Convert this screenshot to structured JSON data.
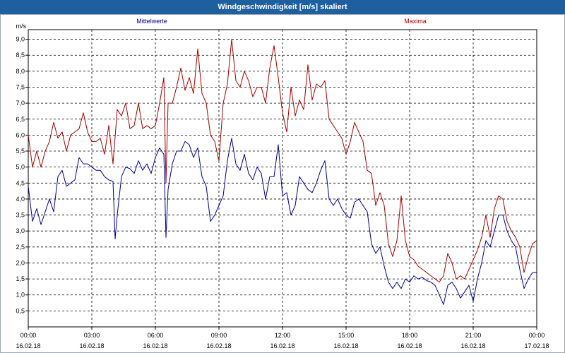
{
  "window": {
    "title": "Windgeschwindigkeit [m/s] skaliert"
  },
  "chart_data": {
    "type": "line",
    "unit": "m/s",
    "ylim": [
      0,
      9.3
    ],
    "yticks": [
      0.5,
      1.0,
      1.5,
      2.0,
      2.5,
      3.0,
      3.5,
      4.0,
      4.5,
      5.0,
      5.5,
      6.0,
      6.5,
      7.0,
      7.5,
      8.0,
      8.5,
      9.0
    ],
    "ytick_labels": [
      "0,5",
      "1,0",
      "1,5",
      "2,0",
      "2,5",
      "3,0",
      "3,5",
      "4,0",
      "4,5",
      "5,0",
      "5,5",
      "6,0",
      "6,5",
      "7,0",
      "7,5",
      "8,0",
      "8,5",
      "9,0"
    ],
    "xlim": [
      0,
      24
    ],
    "xticks": [
      0,
      3,
      6,
      9,
      12,
      15,
      18,
      21,
      24
    ],
    "xtick_time_labels": [
      "00:00",
      "03:00",
      "06:00",
      "09:00",
      "12:00",
      "15:00",
      "18:00",
      "21:00",
      "00:00"
    ],
    "xtick_date_labels": [
      "16.02.18",
      "16.02.18",
      "16.02.18",
      "16.02.18",
      "16.02.18",
      "16.02.18",
      "16.02.18",
      "16.02.18",
      "17.02.18"
    ],
    "grid": true,
    "series": [
      {
        "name": "Mittelwerte",
        "color": "#00008b",
        "legend_position": "top-left",
        "points": [
          [
            0.0,
            4.4
          ],
          [
            0.2,
            3.3
          ],
          [
            0.4,
            3.7
          ],
          [
            0.6,
            3.2
          ],
          [
            0.8,
            3.6
          ],
          [
            1.0,
            4.0
          ],
          [
            1.2,
            3.6
          ],
          [
            1.4,
            4.7
          ],
          [
            1.6,
            4.9
          ],
          [
            1.8,
            4.4
          ],
          [
            2.0,
            4.5
          ],
          [
            2.2,
            4.6
          ],
          [
            2.4,
            5.3
          ],
          [
            2.6,
            5.1
          ],
          [
            2.8,
            5.1
          ],
          [
            3.0,
            5.0
          ],
          [
            3.2,
            4.9
          ],
          [
            3.4,
            4.9
          ],
          [
            3.6,
            4.7
          ],
          [
            3.8,
            4.6
          ],
          [
            4.0,
            4.55
          ],
          [
            4.1,
            2.75
          ],
          [
            4.2,
            3.5
          ],
          [
            4.4,
            4.7
          ],
          [
            4.6,
            5.0
          ],
          [
            4.8,
            4.95
          ],
          [
            5.0,
            4.8
          ],
          [
            5.2,
            5.2
          ],
          [
            5.4,
            4.9
          ],
          [
            5.6,
            5.1
          ],
          [
            5.8,
            4.8
          ],
          [
            6.0,
            5.3
          ],
          [
            6.2,
            5.6
          ],
          [
            6.4,
            5.4
          ],
          [
            6.5,
            2.8
          ],
          [
            6.6,
            4.3
          ],
          [
            6.8,
            5.1
          ],
          [
            7.0,
            5.5
          ],
          [
            7.2,
            5.5
          ],
          [
            7.4,
            5.8
          ],
          [
            7.6,
            5.7
          ],
          [
            7.8,
            5.3
          ],
          [
            8.0,
            5.6
          ],
          [
            8.2,
            4.7
          ],
          [
            8.4,
            4.4
          ],
          [
            8.6,
            3.3
          ],
          [
            8.8,
            3.5
          ],
          [
            9.0,
            3.8
          ],
          [
            9.2,
            4.1
          ],
          [
            9.4,
            5.2
          ],
          [
            9.6,
            5.9
          ],
          [
            9.8,
            5.1
          ],
          [
            10.0,
            4.9
          ],
          [
            10.2,
            5.4
          ],
          [
            10.4,
            4.8
          ],
          [
            10.6,
            4.6
          ],
          [
            10.8,
            5.0
          ],
          [
            11.0,
            4.8
          ],
          [
            11.2,
            4.0
          ],
          [
            11.4,
            4.7
          ],
          [
            11.6,
            4.7
          ],
          [
            11.8,
            5.7
          ],
          [
            12.0,
            4.1
          ],
          [
            12.2,
            4.2
          ],
          [
            12.4,
            3.5
          ],
          [
            12.6,
            3.8
          ],
          [
            12.8,
            4.7
          ],
          [
            13.0,
            4.5
          ],
          [
            13.2,
            4.3
          ],
          [
            13.4,
            4.2
          ],
          [
            13.6,
            4.5
          ],
          [
            13.8,
            4.9
          ],
          [
            14.0,
            5.2
          ],
          [
            14.2,
            4.0
          ],
          [
            14.4,
            3.8
          ],
          [
            14.6,
            4.0
          ],
          [
            14.8,
            3.7
          ],
          [
            15.0,
            3.5
          ],
          [
            15.2,
            3.4
          ],
          [
            15.4,
            3.9
          ],
          [
            15.6,
            4.0
          ],
          [
            15.8,
            3.8
          ],
          [
            16.0,
            3.6
          ],
          [
            16.2,
            2.6
          ],
          [
            16.4,
            2.3
          ],
          [
            16.6,
            2.5
          ],
          [
            16.8,
            1.9
          ],
          [
            17.0,
            1.4
          ],
          [
            17.2,
            1.2
          ],
          [
            17.4,
            1.4
          ],
          [
            17.6,
            1.2
          ],
          [
            17.8,
            1.5
          ],
          [
            18.0,
            1.4
          ],
          [
            18.2,
            1.6
          ],
          [
            18.4,
            1.5
          ],
          [
            18.6,
            1.55
          ],
          [
            18.8,
            1.45
          ],
          [
            19.0,
            1.4
          ],
          [
            19.2,
            1.3
          ],
          [
            19.4,
            1.0
          ],
          [
            19.6,
            0.7
          ],
          [
            19.8,
            1.3
          ],
          [
            20.0,
            1.4
          ],
          [
            20.2,
            1.2
          ],
          [
            20.4,
            0.9
          ],
          [
            20.6,
            1.1
          ],
          [
            20.8,
            1.3
          ],
          [
            21.0,
            0.8
          ],
          [
            21.2,
            1.5
          ],
          [
            21.4,
            2.0
          ],
          [
            21.6,
            2.7
          ],
          [
            21.8,
            2.5
          ],
          [
            22.0,
            3.0
          ],
          [
            22.2,
            3.5
          ],
          [
            22.4,
            3.5
          ],
          [
            22.6,
            3.0
          ],
          [
            22.8,
            2.7
          ],
          [
            23.0,
            2.5
          ],
          [
            23.2,
            1.8
          ],
          [
            23.4,
            1.2
          ],
          [
            23.6,
            1.5
          ],
          [
            23.8,
            1.7
          ],
          [
            24.0,
            1.7
          ]
        ]
      },
      {
        "name": "Maxima",
        "color": "#a00000",
        "legend_position": "top-right",
        "points": [
          [
            0.0,
            6.0
          ],
          [
            0.2,
            5.0
          ],
          [
            0.4,
            5.5
          ],
          [
            0.6,
            5.0
          ],
          [
            0.8,
            5.5
          ],
          [
            1.0,
            5.8
          ],
          [
            1.2,
            6.4
          ],
          [
            1.4,
            5.9
          ],
          [
            1.6,
            6.1
          ],
          [
            1.8,
            5.5
          ],
          [
            2.0,
            6.0
          ],
          [
            2.2,
            6.1
          ],
          [
            2.4,
            6.2
          ],
          [
            2.6,
            6.7
          ],
          [
            2.8,
            6.1
          ],
          [
            3.0,
            5.8
          ],
          [
            3.2,
            5.8
          ],
          [
            3.4,
            5.9
          ],
          [
            3.6,
            5.4
          ],
          [
            3.8,
            6.3
          ],
          [
            4.0,
            5.1
          ],
          [
            4.2,
            6.8
          ],
          [
            4.4,
            6.6
          ],
          [
            4.6,
            7.0
          ],
          [
            4.8,
            6.2
          ],
          [
            5.0,
            6.3
          ],
          [
            5.2,
            7.0
          ],
          [
            5.4,
            6.2
          ],
          [
            5.6,
            6.3
          ],
          [
            5.8,
            6.2
          ],
          [
            6.0,
            6.3
          ],
          [
            6.2,
            7.0
          ],
          [
            6.4,
            7.8
          ],
          [
            6.5,
            4.5
          ],
          [
            6.6,
            7.0
          ],
          [
            6.8,
            7.0
          ],
          [
            7.0,
            7.5
          ],
          [
            7.2,
            8.1
          ],
          [
            7.4,
            7.4
          ],
          [
            7.6,
            7.8
          ],
          [
            7.8,
            7.3
          ],
          [
            8.0,
            8.7
          ],
          [
            8.2,
            7.3
          ],
          [
            8.4,
            7.0
          ],
          [
            8.6,
            6.0
          ],
          [
            8.8,
            5.8
          ],
          [
            9.0,
            5.2
          ],
          [
            9.2,
            7.0
          ],
          [
            9.4,
            7.6
          ],
          [
            9.6,
            9.0
          ],
          [
            9.8,
            7.7
          ],
          [
            10.0,
            7.5
          ],
          [
            10.2,
            8.0
          ],
          [
            10.4,
            7.7
          ],
          [
            10.6,
            7.2
          ],
          [
            10.8,
            7.5
          ],
          [
            11.0,
            7.5
          ],
          [
            11.2,
            7.0
          ],
          [
            11.4,
            8.1
          ],
          [
            11.6,
            8.8
          ],
          [
            11.8,
            7.8
          ],
          [
            12.0,
            6.7
          ],
          [
            12.2,
            6.1
          ],
          [
            12.4,
            7.5
          ],
          [
            12.6,
            6.6
          ],
          [
            12.8,
            7.1
          ],
          [
            13.0,
            6.8
          ],
          [
            13.2,
            8.2
          ],
          [
            13.4,
            7.1
          ],
          [
            13.6,
            7.6
          ],
          [
            13.8,
            7.5
          ],
          [
            14.0,
            7.7
          ],
          [
            14.2,
            6.5
          ],
          [
            14.4,
            6.3
          ],
          [
            14.6,
            6.1
          ],
          [
            14.8,
            5.9
          ],
          [
            15.0,
            5.4
          ],
          [
            15.2,
            5.8
          ],
          [
            15.4,
            6.4
          ],
          [
            15.6,
            6.1
          ],
          [
            15.8,
            5.8
          ],
          [
            16.0,
            4.9
          ],
          [
            16.2,
            4.8
          ],
          [
            16.4,
            3.8
          ],
          [
            16.6,
            4.2
          ],
          [
            16.8,
            3.8
          ],
          [
            17.0,
            2.6
          ],
          [
            17.2,
            2.2
          ],
          [
            17.4,
            2.7
          ],
          [
            17.6,
            4.1
          ],
          [
            17.8,
            2.7
          ],
          [
            18.0,
            2.2
          ],
          [
            18.2,
            2.1
          ],
          [
            18.4,
            1.9
          ],
          [
            18.6,
            1.8
          ],
          [
            18.8,
            1.7
          ],
          [
            19.0,
            1.6
          ],
          [
            19.2,
            1.5
          ],
          [
            19.4,
            1.4
          ],
          [
            19.6,
            1.6
          ],
          [
            19.8,
            2.3
          ],
          [
            20.0,
            2.0
          ],
          [
            20.2,
            1.5
          ],
          [
            20.4,
            1.6
          ],
          [
            20.6,
            1.5
          ],
          [
            20.8,
            1.8
          ],
          [
            21.0,
            2.1
          ],
          [
            21.2,
            2.4
          ],
          [
            21.4,
            2.8
          ],
          [
            21.6,
            3.5
          ],
          [
            21.8,
            2.8
          ],
          [
            22.0,
            3.7
          ],
          [
            22.2,
            4.1
          ],
          [
            22.4,
            4.0
          ],
          [
            22.6,
            3.3
          ],
          [
            22.8,
            3.0
          ],
          [
            23.0,
            2.8
          ],
          [
            23.2,
            2.5
          ],
          [
            23.4,
            1.7
          ],
          [
            23.6,
            2.2
          ],
          [
            23.8,
            2.6
          ],
          [
            24.0,
            2.7
          ]
        ]
      }
    ]
  }
}
